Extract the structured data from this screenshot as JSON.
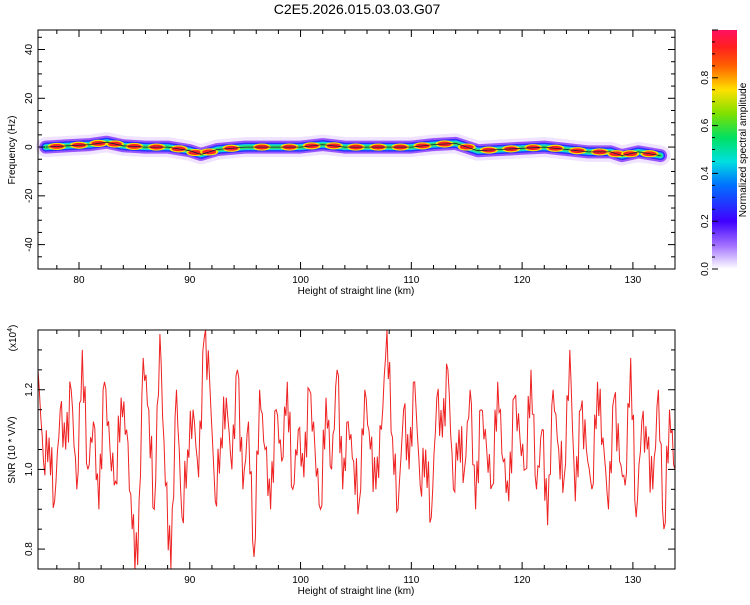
{
  "figure": {
    "title": "C2E5.2026.015.03.03.G07"
  },
  "spectrogram": {
    "xlabel": "Height of straight line (km)",
    "ylabel": "Frequency (Hz)",
    "colorbar_label": "Normalized spectral amplitude"
  },
  "snr_plot": {
    "xlabel": "Height of straight line (km)",
    "ylabel": "SNR (10 * V/V)",
    "exponent_label": "(x10",
    "exponent_power": "4",
    "exponent_close": ")"
  },
  "colors": {
    "line": "#ee2222",
    "axis": "#000000"
  },
  "chart_data": [
    {
      "type": "heatmap",
      "title": "C2E5.2026.015.03.03.G07",
      "xlabel": "Height of straight line (km)",
      "ylabel": "Frequency (Hz)",
      "xlim": [
        76.3,
        133.8
      ],
      "ylim": [
        -50,
        48
      ],
      "x_ticks": [
        "80",
        "90",
        "100",
        "110",
        "120",
        "130"
      ],
      "y_ticks": [
        "-40",
        "-20",
        "0",
        "20",
        "40"
      ],
      "colorbar": {
        "label": "Normalized spectral amplitude",
        "range": [
          0,
          1
        ],
        "ticks": [
          "0.0",
          "0.2",
          "0.4",
          "0.6",
          "0.8"
        ],
        "colormap": "rainbow (white-violet-blue-cyan-green-yellow-red-magenta)"
      },
      "ridge": {
        "x": [
          77,
          79,
          81,
          82.5,
          84,
          86,
          88,
          90,
          91,
          92.5,
          95,
          98,
          100,
          102,
          104,
          106,
          108,
          110,
          112,
          114,
          116,
          118,
          120,
          122,
          124,
          126,
          128,
          129,
          130.5,
          132.5
        ],
        "y": [
          0,
          0.5,
          1,
          2,
          0.5,
          0,
          0,
          -1.5,
          -3,
          -1,
          0,
          0,
          0,
          1,
          0,
          0,
          0,
          0,
          1,
          1.5,
          -1.5,
          -1,
          -0.5,
          0,
          -1,
          -2,
          -2,
          -3.5,
          -2,
          -3.5
        ]
      }
    },
    {
      "type": "line",
      "xlabel": "Height of straight line (km)",
      "ylabel": "SNR (10 * V/V)",
      "y_scale": "x10^4",
      "xlim": [
        76.3,
        133.8
      ],
      "ylim": [
        0.75,
        1.35
      ],
      "x_ticks": [
        "80",
        "90",
        "100",
        "110",
        "120",
        "130"
      ],
      "y_ticks": [
        "0.8",
        "1.0",
        "1.2"
      ],
      "series": [
        {
          "color": "#ee2222",
          "x": [
            76.3,
            76.8,
            77.3,
            77.8,
            78.3,
            78.8,
            79.3,
            79.8,
            80.3,
            80.8,
            81.3,
            81.8,
            82.3,
            82.8,
            83.3,
            83.8,
            84.3,
            84.8,
            85.3,
            85.8,
            86.3,
            86.8,
            87.3,
            87.8,
            88.3,
            88.8,
            89.3,
            89.8,
            90.3,
            90.8,
            91.3,
            91.8,
            92.3,
            92.8,
            93.3,
            93.8,
            94.3,
            94.8,
            95.3,
            95.8,
            96.3,
            96.8,
            97.3,
            97.8,
            98.3,
            98.8,
            99.3,
            99.8,
            100.3,
            100.8,
            101.3,
            101.8,
            102.3,
            102.8,
            103.3,
            103.8,
            104.3,
            104.8,
            105.3,
            105.8,
            106.3,
            106.8,
            107.3,
            107.8,
            108.3,
            108.8,
            109.3,
            109.8,
            110.3,
            110.8,
            111.3,
            111.8,
            112.3,
            112.8,
            113.3,
            113.8,
            114.3,
            114.8,
            115.3,
            115.8,
            116.3,
            116.8,
            117.3,
            117.8,
            118.3,
            118.8,
            119.3,
            119.8,
            120.3,
            120.8,
            121.3,
            121.8,
            122.3,
            122.8,
            123.3,
            123.8,
            124.3,
            124.8,
            125.3,
            125.8,
            126.3,
            126.8,
            127.3,
            127.8,
            128.3,
            128.8,
            129.3,
            129.8,
            130.3,
            130.8,
            131.3,
            131.8,
            132.3,
            132.8,
            133.3,
            133.8
          ],
          "values": [
            1.25,
            1.02,
            1.08,
            0.92,
            1.15,
            1.05,
            1.2,
            0.95,
            1.3,
            1.0,
            1.12,
            0.9,
            1.22,
            1.05,
            0.97,
            1.18,
            1.1,
            0.85,
            0.76,
            1.28,
            1.15,
            0.9,
            1.34,
            0.96,
            0.75,
            1.2,
            0.88,
            1.05,
            1.15,
            0.98,
            1.33,
            1.22,
            0.92,
            1.08,
            1.18,
            1.0,
            1.25,
            0.95,
            1.12,
            0.78,
            1.2,
            1.05,
            0.9,
            1.15,
            1.02,
            1.22,
            0.95,
            1.1,
            0.98,
            1.2,
            1.05,
            0.9,
            1.18,
            1.0,
            1.25,
            0.95,
            1.12,
            1.02,
            0.92,
            1.2,
            1.05,
            0.95,
            1.1,
            1.35,
            1.08,
            0.9,
            1.15,
            1.0,
            1.22,
            0.96,
            1.05,
            0.88,
            1.18,
            1.08,
            1.25,
            0.95,
            1.1,
            1.0,
            1.2,
            0.9,
            1.15,
            1.05,
            0.96,
            1.22,
            1.02,
            0.92,
            1.18,
            1.08,
            1.0,
            1.25,
            0.95,
            1.1,
            0.86,
            1.2,
            1.05,
            0.98,
            1.3,
            0.92,
            1.15,
            1.05,
            0.95,
            1.22,
            1.08,
            0.9,
            1.18,
            1.02,
            0.96,
            1.28,
            0.88,
            1.12,
            1.05,
            0.95,
            1.2,
            0.85,
            1.15,
            1.0
          ]
        }
      ]
    }
  ]
}
